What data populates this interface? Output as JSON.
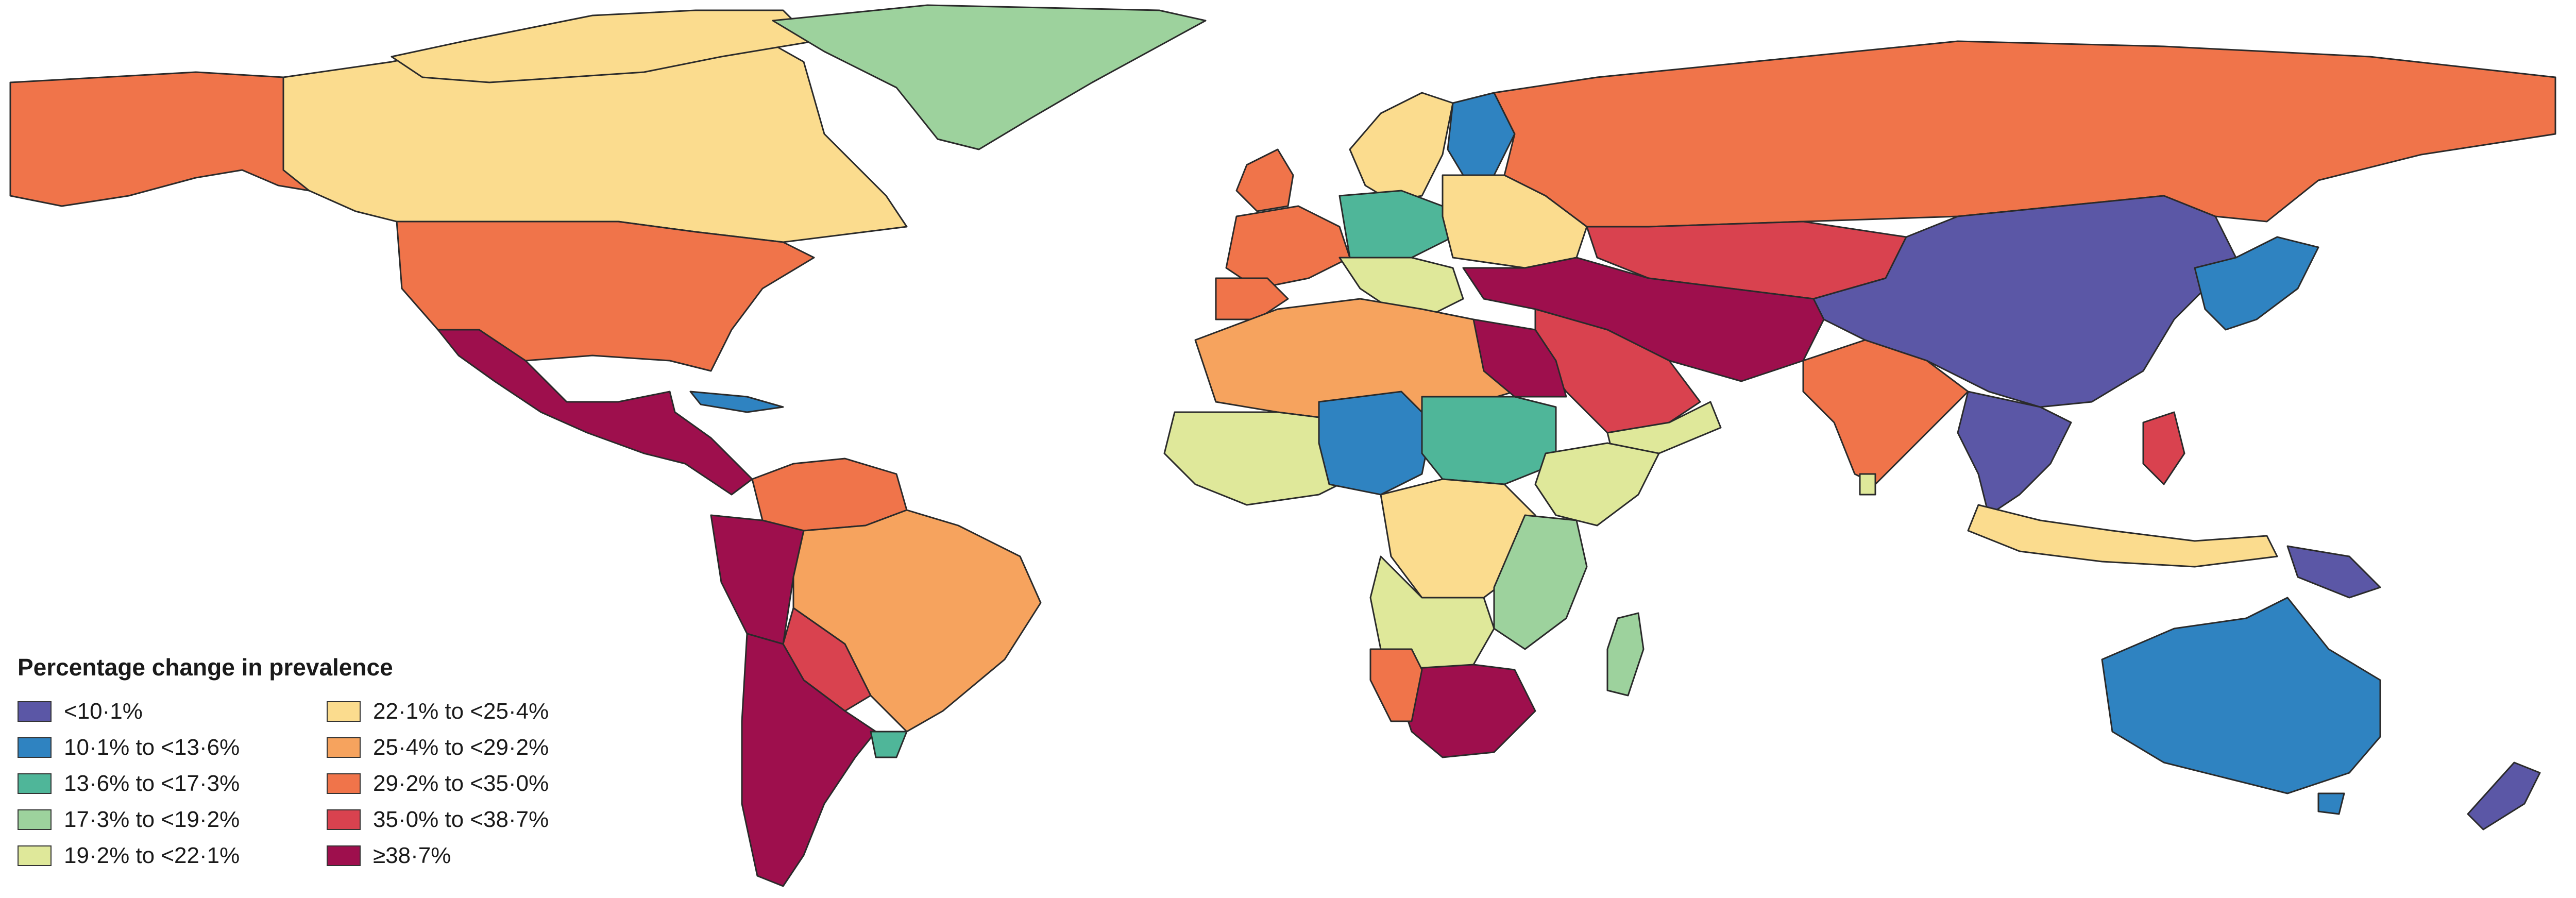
{
  "map": {
    "colors": {
      "c1": "#5b57a6",
      "c2": "#2f83c1",
      "c3": "#4fb699",
      "c4": "#9dd29d",
      "c5": "#dfe89a",
      "c6": "#fbdc8e",
      "c7": "#f6a35e",
      "c8": "#f0744a",
      "c9": "#d9424f",
      "c10": "#9e0f4d",
      "nodata": "#c8c8c8"
    }
  },
  "legend": {
    "title": "Percentage change in prevalence",
    "items": [
      {
        "label": "<10·1%",
        "color": "#5b57a6"
      },
      {
        "label": "10·1% to <13·6%",
        "color": "#2f83c1"
      },
      {
        "label": "13·6% to <17·3%",
        "color": "#4fb699"
      },
      {
        "label": "17·3% to <19·2%",
        "color": "#9dd29d"
      },
      {
        "label": "19·2% to <22·1%",
        "color": "#dfe89a"
      },
      {
        "label": "22·1% to <25·4%",
        "color": "#fbdc8e"
      },
      {
        "label": "25·4% to <29·2%",
        "color": "#f6a35e"
      },
      {
        "label": "29·2% to <35·0%",
        "color": "#f0744a"
      },
      {
        "label": "35·0% to <38·7%",
        "color": "#d9424f"
      },
      {
        "label": "≥38·7%",
        "color": "#9e0f4d"
      }
    ]
  }
}
